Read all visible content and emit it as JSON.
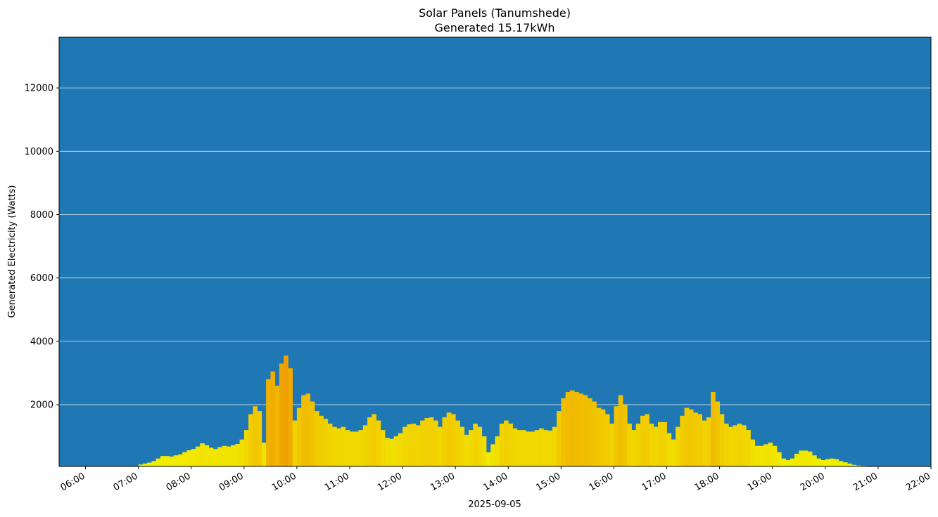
{
  "chart_data": {
    "type": "bar",
    "title": "Solar Panels (Tanumshede)",
    "subtitle": "Generated 15.17kWh",
    "ylabel": "Generated Electricity (Watts)",
    "xlabel": "2025-09-05",
    "ylim": [
      50,
      13600
    ],
    "xlim": [
      "05:30",
      "22:00"
    ],
    "grid": "horizontal",
    "colors": {
      "background": "#1f77b4",
      "grid": "#ffffff",
      "low": "#f1f000",
      "high": "#f0a000"
    },
    "yticks": [
      2000,
      4000,
      6000,
      8000,
      10000,
      12000
    ],
    "xticks": [
      "06:00",
      "07:00",
      "08:00",
      "09:00",
      "10:00",
      "11:00",
      "12:00",
      "13:00",
      "14:00",
      "15:00",
      "16:00",
      "17:00",
      "18:00",
      "19:00",
      "20:00",
      "21:00",
      "22:00"
    ],
    "interval_minutes": 5,
    "start_time": "07:00",
    "values": [
      110,
      140,
      170,
      220,
      300,
      380,
      380,
      360,
      400,
      430,
      500,
      560,
      600,
      680,
      780,
      720,
      640,
      600,
      660,
      700,
      680,
      720,
      760,
      900,
      1200,
      1700,
      1950,
      1800,
      800,
      2800,
      3050,
      2600,
      3300,
      3550,
      3150,
      1500,
      1900,
      2300,
      2350,
      2100,
      1800,
      1650,
      1550,
      1400,
      1300,
      1250,
      1300,
      1200,
      1150,
      1150,
      1200,
      1350,
      1600,
      1700,
      1500,
      1200,
      950,
      920,
      1000,
      1100,
      1300,
      1380,
      1400,
      1350,
      1500,
      1580,
      1600,
      1500,
      1300,
      1600,
      1750,
      1700,
      1500,
      1300,
      1050,
      1200,
      1400,
      1300,
      1000,
      500,
      750,
      1000,
      1400,
      1500,
      1400,
      1250,
      1200,
      1200,
      1150,
      1150,
      1200,
      1250,
      1200,
      1180,
      1300,
      1800,
      2200,
      2400,
      2450,
      2400,
      2350,
      2300,
      2200,
      2100,
      1900,
      1850,
      1700,
      1400,
      1950,
      2300,
      2000,
      1400,
      1200,
      1400,
      1650,
      1700,
      1400,
      1300,
      1450,
      1450,
      1100,
      900,
      1300,
      1650,
      1900,
      1850,
      1750,
      1700,
      1500,
      1600,
      2400,
      2100,
      1700,
      1400,
      1300,
      1350,
      1400,
      1350,
      1200,
      900,
      700,
      700,
      750,
      800,
      700,
      500,
      300,
      250,
      300,
      450,
      550,
      550,
      520,
      400,
      300,
      250,
      280,
      300,
      280,
      220,
      180,
      140,
      100,
      80,
      70,
      60,
      55,
      50,
      50
    ]
  }
}
